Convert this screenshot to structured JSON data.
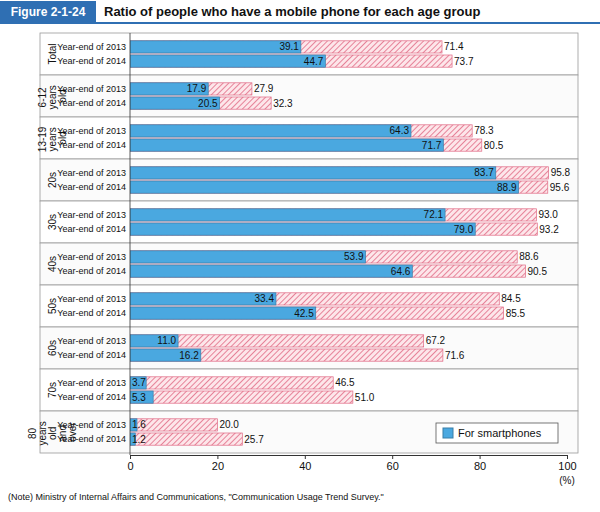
{
  "chart_data": {
    "type": "bar",
    "orientation": "horizontal",
    "stacked": false,
    "grid": false,
    "data_labels": true,
    "legend": "bottom right",
    "figure_label": "Figure 2-1-24",
    "title": "Ratio of people who have a mobile phone for each age group",
    "xlabel": "(%)",
    "note": "(Note)  Ministry of Internal Affairs and Communications, \"Communication Usage Trend Survey.\"",
    "groups": [
      "Total",
      "6-12 years old",
      "13-19 years old",
      "20s",
      "30s",
      "40s",
      "50s",
      "60s",
      "70s",
      "80 years old and over"
    ],
    "categories": [
      "Year-end of 2013",
      "Year-end of 2014",
      "Year-end of 2013",
      "Year-end of 2014",
      "Year-end of 2013",
      "Year-end of 2014",
      "Year-end of 2013",
      "Year-end of 2014",
      "Year-end of 2013",
      "Year-end of 2014",
      "Year-end of 2013",
      "Year-end of 2014",
      "Year-end of 2013",
      "Year-end of 2014",
      "Year-end of 2013",
      "Year-end of 2014",
      "Year-end of 2013",
      "Year-end of 2014",
      "Year-end of 2013",
      "Year-end of 2014"
    ],
    "series": [
      {
        "name": "For smartphones",
        "color": "#4aa8e0",
        "values": [
          39.1,
          44.7,
          17.9,
          20.5,
          64.3,
          71.7,
          83.7,
          88.9,
          72.1,
          79.0,
          53.9,
          64.6,
          33.4,
          42.5,
          11.0,
          16.2,
          3.7,
          5.3,
          1.6,
          1.2
        ],
        "value_labels": [
          "39.1",
          "44.7",
          "17.9",
          "20.5",
          "64.3",
          "71.7",
          "83.7",
          "88.9",
          "72.1",
          "79.0",
          "53.9",
          "64.6",
          "33.4",
          "42.5",
          "11.0",
          "16.2",
          "3.7",
          "5.3",
          "1.6",
          "1.2"
        ]
      },
      {
        "color": "#e06a85",
        "line_style": "hatched",
        "values": [
          71.4,
          73.7,
          27.9,
          32.3,
          78.3,
          80.5,
          95.8,
          95.6,
          93.0,
          93.2,
          88.6,
          90.5,
          84.5,
          85.5,
          67.2,
          71.6,
          46.5,
          51.0,
          20.0,
          25.7
        ],
        "value_labels": [
          "71.4",
          "73.7",
          "27.9",
          "32.3",
          "78.3",
          "80.5",
          "95.8",
          "95.6",
          "93.0",
          "93.2",
          "88.6",
          "90.5",
          "84.5",
          "85.5",
          "67.2",
          "71.6",
          "46.5",
          "51.0",
          "20.0",
          "25.7"
        ]
      }
    ],
    "xlim": [
      0,
      100
    ],
    "xticks": [
      0,
      20,
      40,
      60,
      80,
      100
    ]
  }
}
